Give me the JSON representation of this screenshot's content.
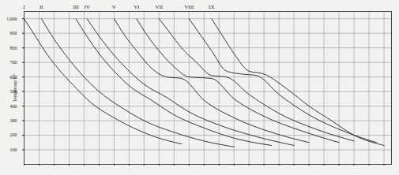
{
  "chart_data": {
    "type": "line",
    "y_label": "Temperatur C°",
    "xlim": [
      0,
      49
    ],
    "xticks": [
      0,
      2,
      4,
      6,
      8,
      10,
      12,
      14,
      16,
      18,
      20,
      22,
      24,
      26,
      28,
      30,
      32,
      34,
      36,
      38,
      40,
      42,
      44,
      46,
      48
    ],
    "ylim": [
      0,
      1050
    ],
    "yticks": [
      100,
      200,
      300,
      400,
      500,
      600,
      700,
      800,
      900,
      1000
    ],
    "grid": true,
    "tick_labels": "y",
    "color": "#222222",
    "series": [
      {
        "name": "I",
        "x": [
          0,
          1.5,
          3,
          5,
          7,
          9,
          12,
          15,
          18,
          21
        ],
        "values": [
          1000,
          880,
          760,
          630,
          520,
          420,
          320,
          240,
          180,
          140
        ]
      },
      {
        "name": "II",
        "x": [
          2.3,
          4,
          6,
          8,
          10,
          13,
          16,
          20,
          24,
          28
        ],
        "values": [
          1000,
          860,
          720,
          600,
          500,
          390,
          300,
          220,
          160,
          120
        ]
      },
      {
        "name": "III",
        "x": [
          6.9,
          8.5,
          10,
          12,
          14,
          17,
          20,
          24,
          28,
          33
        ],
        "values": [
          1000,
          870,
          760,
          640,
          540,
          440,
          340,
          250,
          180,
          130
        ]
      },
      {
        "name": "IV",
        "x": [
          8.4,
          10,
          12,
          14,
          16,
          19,
          22,
          26,
          31,
          36
        ],
        "values": [
          1000,
          880,
          750,
          640,
          550,
          460,
          360,
          270,
          190,
          130
        ]
      },
      {
        "name": "V",
        "x": [
          12,
          13.5,
          15,
          17,
          19,
          21,
          24,
          28,
          33,
          38
        ],
        "values": [
          1000,
          880,
          780,
          660,
          600,
          590,
          440,
          320,
          220,
          150
        ]
      },
      {
        "name": "VI",
        "x": [
          15,
          16.5,
          18,
          20,
          22,
          25,
          28,
          32,
          37,
          42
        ],
        "values": [
          1000,
          880,
          780,
          670,
          600,
          590,
          450,
          330,
          230,
          150
        ]
      },
      {
        "name": "VII",
        "x": [
          18,
          19.5,
          21,
          23,
          25,
          27,
          30,
          34,
          39,
          44
        ],
        "values": [
          1000,
          900,
          800,
          700,
          610,
          600,
          480,
          350,
          240,
          160
        ]
      },
      {
        "name": "VIII",
        "x": [
          22,
          23.5,
          25,
          27,
          29,
          31,
          34,
          38,
          43,
          47
        ],
        "values": [
          1000,
          890,
          780,
          640,
          620,
          610,
          480,
          340,
          220,
          150
        ]
      },
      {
        "name": "IX",
        "x": [
          25,
          26.5,
          28,
          30,
          32,
          35,
          38,
          41,
          44,
          48
        ],
        "values": [
          1000,
          880,
          760,
          640,
          620,
          520,
          400,
          300,
          200,
          130
        ]
      }
    ]
  }
}
